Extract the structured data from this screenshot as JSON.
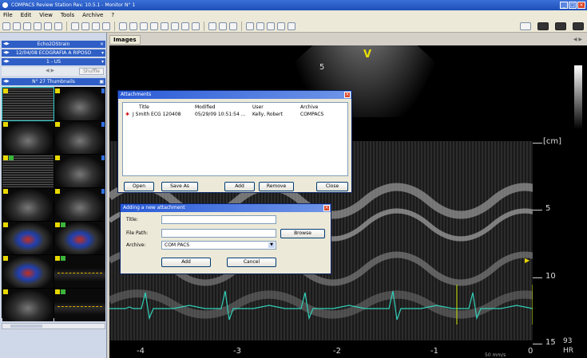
{
  "window": {
    "title": "COMPACS Review Station Rev. 10.5.1 - Monitor N° 1",
    "controls": [
      "_",
      "□",
      "×"
    ]
  },
  "menu": [
    "File",
    "Edit",
    "View",
    "Tools",
    "Archive",
    "?"
  ],
  "left_panel": {
    "study_bar": "Echo2DStrain",
    "exam_bar": "12/04/08 ECOGRAFIA A RIPOSO",
    "series_bar": "1 - US",
    "shuffle_label": "Shuffle",
    "thumbnails_bar": "N° 27 Thumbnails"
  },
  "images_tab": "Images",
  "viewer": {
    "view_label": "V",
    "depth_unit": "[cm]",
    "depth_marks": [
      "5",
      "10",
      "15"
    ],
    "time_marks": [
      "-4",
      "-3",
      "-2",
      "-1",
      "0"
    ],
    "top_depth": "5",
    "hr_value": "93",
    "hr_label": "HR",
    "speed_label": "50 mm/s"
  },
  "attachments_dialog": {
    "title": "Attachments",
    "columns": [
      "Title",
      "Modified",
      "User",
      "Archive"
    ],
    "rows": [
      {
        "title": "J Smith ECG 120408",
        "modified": "05/29/09 10:51:54 ...",
        "user": "Kelly, Robert",
        "archive": "COMPACS"
      }
    ],
    "buttons": {
      "open": "Open",
      "save_as": "Save As",
      "add": "Add",
      "remove": "Remove",
      "close": "Close"
    }
  },
  "add_dialog": {
    "title": "Adding a new attachment",
    "title_label": "Title:",
    "title_value": "",
    "filepath_label": "File Path:",
    "filepath_value": "",
    "browse_label": "Browse",
    "archive_label": "Archive:",
    "archive_value": "COM PACS",
    "add_label": "Add",
    "cancel_label": "Cancel"
  }
}
